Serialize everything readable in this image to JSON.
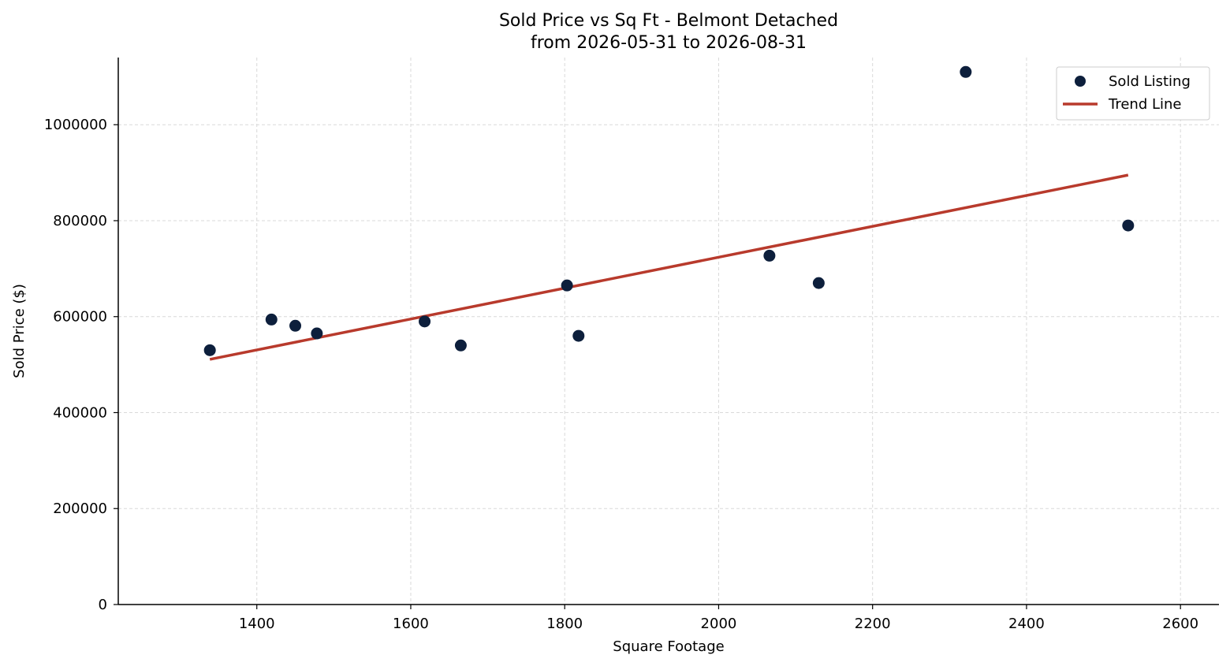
{
  "chart_data": {
    "type": "scatter",
    "title": "Sold Price vs Sq Ft - Belmont Detached",
    "subtitle": "from 2026-05-31 to 2026-08-31",
    "xlabel": "Square Footage",
    "ylabel": "Sold Price ($)",
    "xlim": [
      1220,
      2650
    ],
    "ylim": [
      0,
      1140000
    ],
    "xticks": [
      1400,
      1600,
      1800,
      2000,
      2200,
      2400,
      2600
    ],
    "yticks": [
      0,
      200000,
      400000,
      600000,
      800000,
      1000000
    ],
    "grid": true,
    "legend_position": "top-right",
    "series": [
      {
        "name": "Sold Listing",
        "kind": "scatter",
        "color": "#0d1f3c",
        "points": [
          {
            "x": 1339,
            "y": 530000
          },
          {
            "x": 1419,
            "y": 594000
          },
          {
            "x": 1450,
            "y": 581000
          },
          {
            "x": 1478,
            "y": 565000
          },
          {
            "x": 1618,
            "y": 590000
          },
          {
            "x": 1665,
            "y": 540000
          },
          {
            "x": 1803,
            "y": 665000
          },
          {
            "x": 1818,
            "y": 560000
          },
          {
            "x": 2066,
            "y": 727000
          },
          {
            "x": 2130,
            "y": 670000
          },
          {
            "x": 2321,
            "y": 1110000
          },
          {
            "x": 2532,
            "y": 790000
          }
        ]
      },
      {
        "name": "Trend Line",
        "kind": "line",
        "color": "#b83a2c",
        "points": [
          {
            "x": 1339,
            "y": 511000
          },
          {
            "x": 2532,
            "y": 895000
          }
        ]
      }
    ]
  }
}
